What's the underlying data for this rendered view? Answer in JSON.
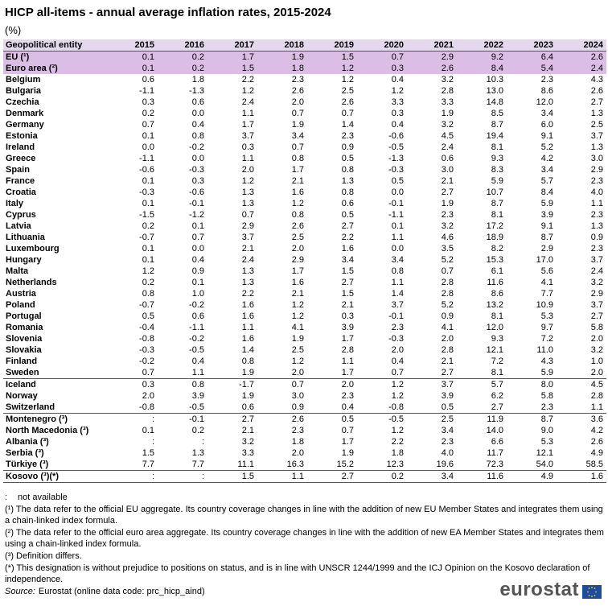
{
  "title": "HICP all-items - annual average inflation rates, 2015-2024",
  "unit": "(%)",
  "table": {
    "header": [
      "Geopolitical entity",
      "2015",
      "2016",
      "2017",
      "2018",
      "2019",
      "2020",
      "2021",
      "2022",
      "2023",
      "2024"
    ],
    "sections": [
      {
        "rows": [
          [
            "EU (¹)",
            "0.1",
            "0.2",
            "1.7",
            "1.9",
            "1.5",
            "0.7",
            "2.9",
            "9.2",
            "6.4",
            "2.6"
          ],
          [
            "Euro area (²)",
            "0.1",
            "0.2",
            "1.5",
            "1.8",
            "1.2",
            "0.3",
            "2.6",
            "8.4",
            "5.4",
            "2.4"
          ]
        ]
      },
      {
        "rows": [
          [
            "Belgium",
            "0.6",
            "1.8",
            "2.2",
            "2.3",
            "1.2",
            "0.4",
            "3.2",
            "10.3",
            "2.3",
            "4.3"
          ],
          [
            "Bulgaria",
            "-1.1",
            "-1.3",
            "1.2",
            "2.6",
            "2.5",
            "1.2",
            "2.8",
            "13.0",
            "8.6",
            "2.6"
          ],
          [
            "Czechia",
            "0.3",
            "0.6",
            "2.4",
            "2.0",
            "2.6",
            "3.3",
            "3.3",
            "14.8",
            "12.0",
            "2.7"
          ],
          [
            "Denmark",
            "0.2",
            "0.0",
            "1.1",
            "0.7",
            "0.7",
            "0.3",
            "1.9",
            "8.5",
            "3.4",
            "1.3"
          ],
          [
            "Germany",
            "0.7",
            "0.4",
            "1.7",
            "1.9",
            "1.4",
            "0.4",
            "3.2",
            "8.7",
            "6.0",
            "2.5"
          ],
          [
            "Estonia",
            "0.1",
            "0.8",
            "3.7",
            "3.4",
            "2.3",
            "-0.6",
            "4.5",
            "19.4",
            "9.1",
            "3.7"
          ],
          [
            "Ireland",
            "0.0",
            "-0.2",
            "0.3",
            "0.7",
            "0.9",
            "-0.5",
            "2.4",
            "8.1",
            "5.2",
            "1.3"
          ],
          [
            "Greece",
            "-1.1",
            "0.0",
            "1.1",
            "0.8",
            "0.5",
            "-1.3",
            "0.6",
            "9.3",
            "4.2",
            "3.0"
          ],
          [
            "Spain",
            "-0.6",
            "-0.3",
            "2.0",
            "1.7",
            "0.8",
            "-0.3",
            "3.0",
            "8.3",
            "3.4",
            "2.9"
          ],
          [
            "France",
            "0.1",
            "0.3",
            "1.2",
            "2.1",
            "1.3",
            "0.5",
            "2.1",
            "5.9",
            "5.7",
            "2.3"
          ],
          [
            "Croatia",
            "-0.3",
            "-0.6",
            "1.3",
            "1.6",
            "0.8",
            "0.0",
            "2.7",
            "10.7",
            "8.4",
            "4.0"
          ],
          [
            "Italy",
            "0.1",
            "-0.1",
            "1.3",
            "1.2",
            "0.6",
            "-0.1",
            "1.9",
            "8.7",
            "5.9",
            "1.1"
          ],
          [
            "Cyprus",
            "-1.5",
            "-1.2",
            "0.7",
            "0.8",
            "0.5",
            "-1.1",
            "2.3",
            "8.1",
            "3.9",
            "2.3"
          ],
          [
            "Latvia",
            "0.2",
            "0.1",
            "2.9",
            "2.6",
            "2.7",
            "0.1",
            "3.2",
            "17.2",
            "9.1",
            "1.3"
          ],
          [
            "Lithuania",
            "-0.7",
            "0.7",
            "3.7",
            "2.5",
            "2.2",
            "1.1",
            "4.6",
            "18.9",
            "8.7",
            "0.9"
          ],
          [
            "Luxembourg",
            "0.1",
            "0.0",
            "2.1",
            "2.0",
            "1.6",
            "0.0",
            "3.5",
            "8.2",
            "2.9",
            "2.3"
          ],
          [
            "Hungary",
            "0.1",
            "0.4",
            "2.4",
            "2.9",
            "3.4",
            "3.4",
            "5.2",
            "15.3",
            "17.0",
            "3.7"
          ],
          [
            "Malta",
            "1.2",
            "0.9",
            "1.3",
            "1.7",
            "1.5",
            "0.8",
            "0.7",
            "6.1",
            "5.6",
            "2.4"
          ],
          [
            "Netherlands",
            "0.2",
            "0.1",
            "1.3",
            "1.6",
            "2.7",
            "1.1",
            "2.8",
            "11.6",
            "4.1",
            "3.2"
          ],
          [
            "Austria",
            "0.8",
            "1.0",
            "2.2",
            "2.1",
            "1.5",
            "1.4",
            "2.8",
            "8.6",
            "7.7",
            "2.9"
          ],
          [
            "Poland",
            "-0.7",
            "-0.2",
            "1.6",
            "1.2",
            "2.1",
            "3.7",
            "5.2",
            "13.2",
            "10.9",
            "3.7"
          ],
          [
            "Portugal",
            "0.5",
            "0.6",
            "1.6",
            "1.2",
            "0.3",
            "-0.1",
            "0.9",
            "8.1",
            "5.3",
            "2.7"
          ],
          [
            "Romania",
            "-0.4",
            "-1.1",
            "1.1",
            "4.1",
            "3.9",
            "2.3",
            "4.1",
            "12.0",
            "9.7",
            "5.8"
          ],
          [
            "Slovenia",
            "-0.8",
            "-0.2",
            "1.6",
            "1.9",
            "1.7",
            "-0.3",
            "2.0",
            "9.3",
            "7.2",
            "2.0"
          ],
          [
            "Slovakia",
            "-0.3",
            "-0.5",
            "1.4",
            "2.5",
            "2.8",
            "2.0",
            "2.8",
            "12.1",
            "11.0",
            "3.2"
          ],
          [
            "Finland",
            "-0.2",
            "0.4",
            "0.8",
            "1.2",
            "1.1",
            "0.4",
            "2.1",
            "7.2",
            "4.3",
            "1.0"
          ],
          [
            "Sweden",
            "0.7",
            "1.1",
            "1.9",
            "2.0",
            "1.7",
            "0.7",
            "2.7",
            "8.1",
            "5.9",
            "2.0"
          ]
        ]
      },
      {
        "rows": [
          [
            "Iceland",
            "0.3",
            "0.8",
            "-1.7",
            "0.7",
            "2.0",
            "1.2",
            "3.7",
            "5.7",
            "8.0",
            "4.5"
          ],
          [
            "Norway",
            "2.0",
            "3.9",
            "1.9",
            "3.0",
            "2.3",
            "1.2",
            "3.9",
            "6.2",
            "5.8",
            "2.8"
          ],
          [
            "Switzerland",
            "-0.8",
            "-0.5",
            "0.6",
            "0.9",
            "0.4",
            "-0.8",
            "0.5",
            "2.7",
            "2.3",
            "1.1"
          ]
        ]
      },
      {
        "rows": [
          [
            "Montenegro (³)",
            ":",
            "-0.1",
            "2.7",
            "2.6",
            "0.5",
            "-0.5",
            "2.5",
            "11.9",
            "8.7",
            "3.6"
          ],
          [
            "North Macedonia (³)",
            "0.1",
            "0.2",
            "2.1",
            "2.3",
            "0.7",
            "1.2",
            "3.4",
            "14.0",
            "9.0",
            "4.2"
          ],
          [
            "Albania (³)",
            ":",
            ":",
            "3.2",
            "1.8",
            "1.7",
            "2.2",
            "2.3",
            "6.6",
            "5.3",
            "2.6"
          ],
          [
            "Serbia (³)",
            "1.5",
            "1.3",
            "3.3",
            "2.0",
            "1.9",
            "1.8",
            "4.0",
            "11.7",
            "12.1",
            "4.9"
          ],
          [
            "Türkiye (³)",
            "7.7",
            "7.7",
            "11.1",
            "16.3",
            "15.2",
            "12.3",
            "19.6",
            "72.3",
            "54.0",
            "58.5"
          ]
        ]
      },
      {
        "rows": [
          [
            "Kosovo (³)(*)",
            ":",
            ":",
            "1.5",
            "1.1",
            "2.7",
            "0.2",
            "3.4",
            "11.6",
            "4.9",
            "1.6"
          ]
        ]
      }
    ]
  },
  "notes": {
    "symbol": ":",
    "symbol_text": "not available",
    "footnotes": [
      "(¹) The data refer to the official EU aggregate. Its country coverage changes in line with the addition of new EU Member States and integrates them using a chain-linked index formula.",
      "(²) The data refer to the official euro area aggregate. Its country coverage changes in line with the addition of new EA Member States and integrates them using a chain-linked index formula.",
      "(³) Definition differs.",
      "(*) This designation is without prejudice to positions on status, and is in line with UNSCR 1244/1999 and the ICJ Opinion on the Kosovo declaration of independence."
    ],
    "source_label": "Source:",
    "source": "Eurostat (online data code: prc_hicp_aind)"
  },
  "logo": "eurostat"
}
